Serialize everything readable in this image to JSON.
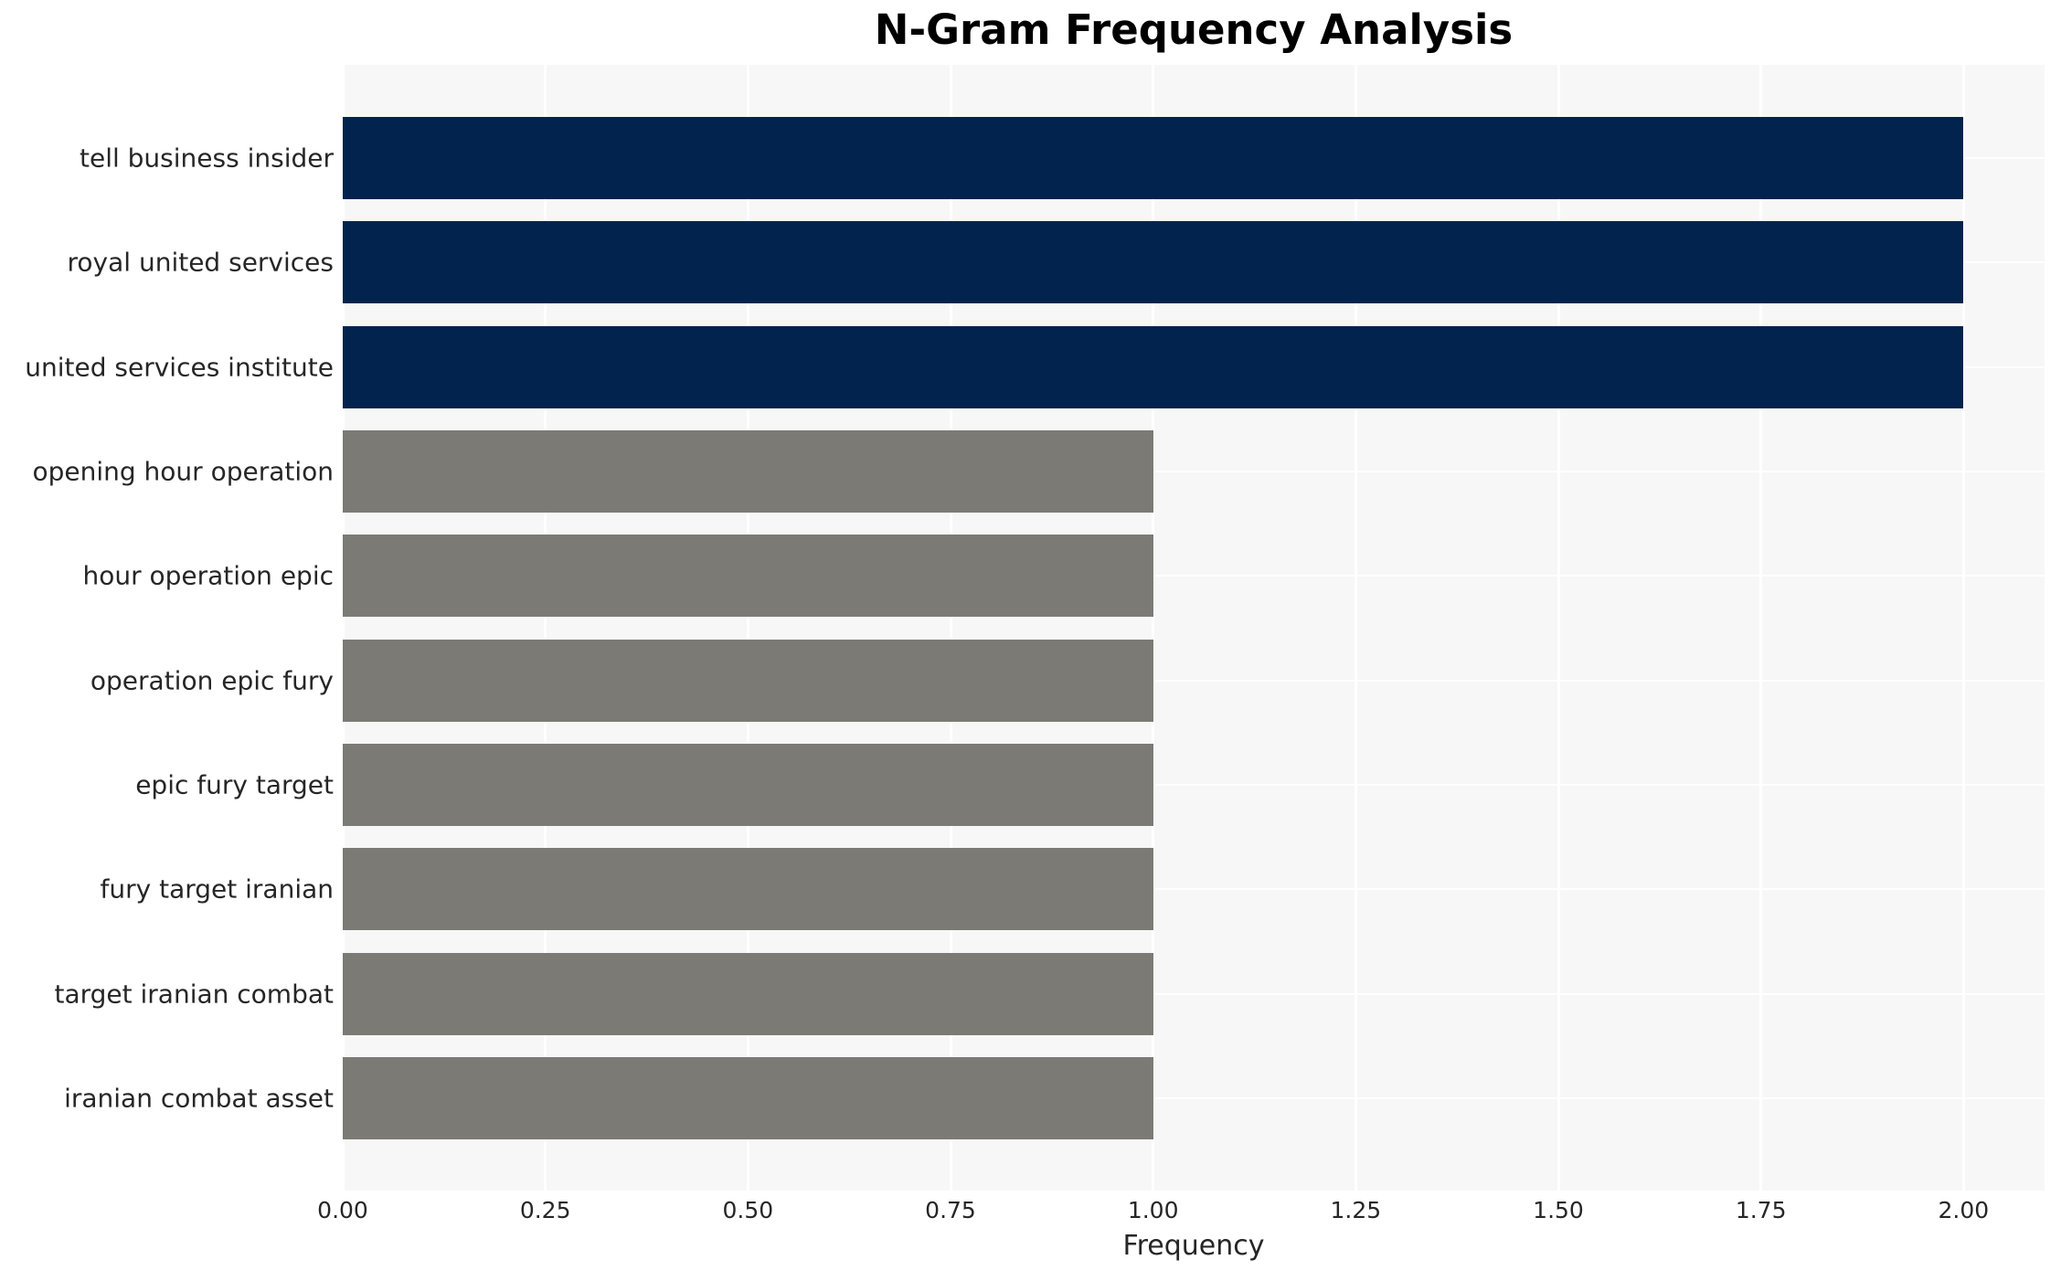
{
  "chart_data": {
    "type": "bar",
    "orientation": "horizontal",
    "title": "N-Gram Frequency Analysis",
    "xlabel": "Frequency",
    "ylabel": "",
    "categories": [
      "tell business insider",
      "royal united services",
      "united services institute",
      "opening hour operation",
      "hour operation epic",
      "operation epic fury",
      "epic fury target",
      "fury target iranian",
      "target iranian combat",
      "iranian combat asset"
    ],
    "values": [
      2,
      2,
      2,
      1,
      1,
      1,
      1,
      1,
      1,
      1
    ],
    "bar_colors": [
      "#02234d",
      "#02234d",
      "#02234d",
      "#7b7a75",
      "#7b7a75",
      "#7b7a75",
      "#7b7a75",
      "#7b7a75",
      "#7b7a75",
      "#7b7a75"
    ],
    "xlim": [
      0,
      2.1
    ],
    "xtick_labels": [
      "0.00",
      "0.25",
      "0.50",
      "0.75",
      "1.00",
      "1.25",
      "1.50",
      "1.75",
      "2.00"
    ],
    "xtick_values": [
      0,
      0.25,
      0.5,
      0.75,
      1.0,
      1.25,
      1.5,
      1.75,
      2.0
    ],
    "grid": true,
    "legend": false,
    "colors": {
      "high_freq_bar": "#02234d",
      "low_freq_bar": "#7b7a75",
      "plot_background": "#f7f7f7",
      "gridline": "#ffffff",
      "tick_text": "#262626",
      "title_text": "#000000"
    }
  }
}
